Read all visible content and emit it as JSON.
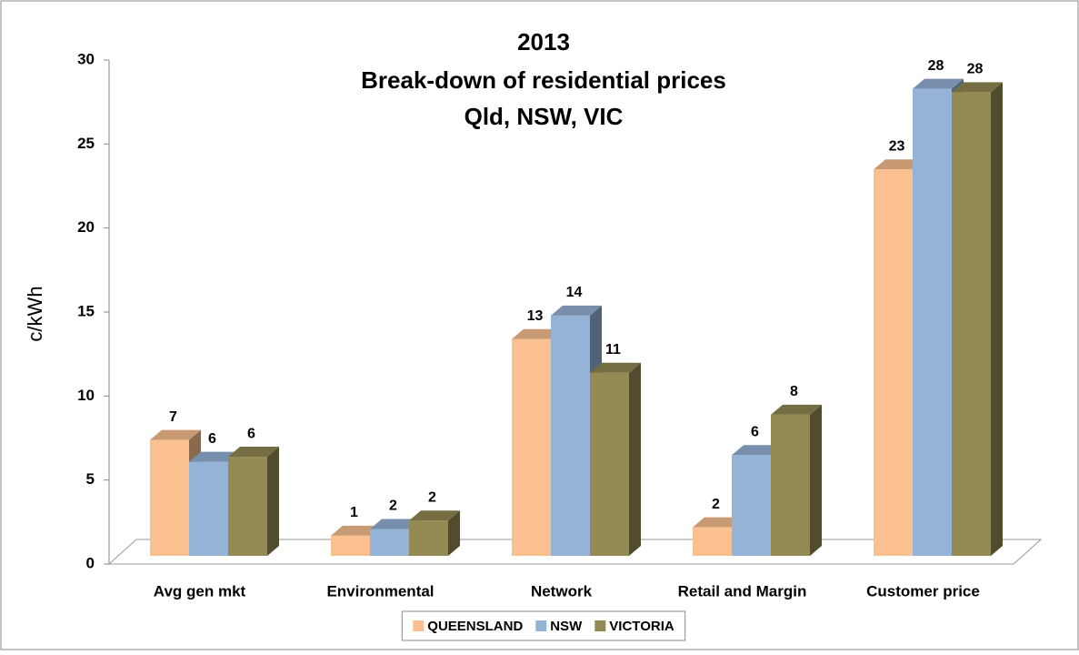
{
  "chart_data": {
    "type": "bar3d",
    "title": "2013",
    "subtitle": [
      "Break-down of residential prices",
      "Qld, NSW, VIC"
    ],
    "y_label": "c/kWh",
    "categories": [
      "Avg gen mkt",
      "Environmental",
      "Network",
      "Retail and Margin",
      "Customer price"
    ],
    "series": [
      {
        "name": "QUEENSLAND",
        "color": "#fac090",
        "values": [
          6.9,
          1.2,
          12.9,
          1.7,
          23.0
        ],
        "value_labels": [
          "7",
          "1",
          "13",
          "2",
          "23"
        ]
      },
      {
        "name": "NSW",
        "color": "#95b3d7",
        "values": [
          5.6,
          1.6,
          14.3,
          6.0,
          27.8
        ],
        "value_labels": [
          "6",
          "2",
          "14",
          "6",
          "28"
        ]
      },
      {
        "name": "VICTORIA",
        "color": "#948a54",
        "values": [
          5.9,
          2.1,
          10.9,
          8.4,
          27.6
        ],
        "value_labels": [
          "6",
          "2",
          "11",
          "8",
          "28"
        ]
      }
    ],
    "ylim": [
      0,
      30
    ],
    "yticks": [
      0,
      5,
      10,
      15,
      20,
      25,
      30
    ],
    "legend": "bottom"
  }
}
